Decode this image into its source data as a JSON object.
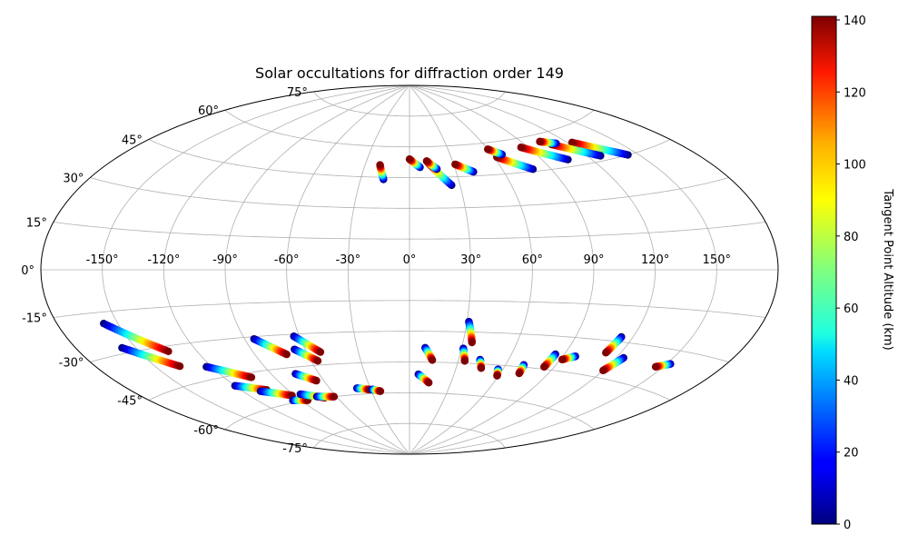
{
  "chart_data": {
    "type": "scatter",
    "projection": "aitoff",
    "title": "Solar occultations for diffraction order 149",
    "grid": true,
    "x_tick_labels": [
      "-150°",
      "-120°",
      "-90°",
      "-60°",
      "-30°",
      "0°",
      "30°",
      "60°",
      "90°",
      "120°",
      "150°"
    ],
    "x_tick_values": [
      -150,
      -120,
      -90,
      -60,
      -30,
      0,
      30,
      60,
      90,
      120,
      150
    ],
    "y_tick_labels": [
      "-75°",
      "-60°",
      "-45°",
      "-30°",
      "-15°",
      "0°",
      "15°",
      "30°",
      "45°",
      "60°",
      "75°"
    ],
    "y_tick_values": [
      -75,
      -60,
      -45,
      -30,
      -15,
      0,
      15,
      30,
      45,
      60,
      75
    ],
    "colorbar": {
      "label": "Tangent Point Altitude (km)",
      "colormap": "jet",
      "range": [
        0,
        141
      ],
      "tick_labels": [
        "0",
        "20",
        "40",
        "60",
        "80",
        "100",
        "120",
        "140"
      ],
      "tick_values": [
        0,
        20,
        40,
        60,
        80,
        100,
        120,
        140
      ]
    },
    "series_note": "Each track runs from start_lon/start_lat (altitude 0 km) to end_lon/end_lat (altitude 140 km).",
    "tracks": [
      {
        "start_lon": 144,
        "start_lat": 45,
        "end_lon": 123,
        "end_lat": 54
      },
      {
        "start_lon": 128,
        "start_lat": 47,
        "end_lon": 108,
        "end_lat": 55
      },
      {
        "start_lon": 106,
        "start_lat": 48,
        "end_lon": 85,
        "end_lat": 56
      },
      {
        "start_lon": 112,
        "start_lat": 55,
        "end_lon": 103,
        "end_lat": 57
      },
      {
        "start_lon": 79,
        "start_lat": 46,
        "end_lon": 62,
        "end_lat": 53
      },
      {
        "start_lon": 67,
        "start_lat": 54,
        "end_lon": 60,
        "end_lat": 57
      },
      {
        "start_lon": 41,
        "start_lat": 47,
        "end_lon": 31,
        "end_lat": 51
      },
      {
        "start_lon": 25,
        "start_lat": 41,
        "end_lon": 13,
        "end_lat": 52
      },
      {
        "start_lon": 18,
        "start_lat": 49,
        "end_lon": 12,
        "end_lat": 53
      },
      {
        "start_lon": 7,
        "start_lat": 50,
        "end_lon": 0,
        "end_lat": 54
      },
      {
        "start_lon": -16,
        "start_lat": 44,
        "end_lon": -20,
        "end_lat": 51
      },
      {
        "start_lon": 114,
        "start_lat": -28,
        "end_lon": 112,
        "end_lat": -35
      },
      {
        "start_lon": 124,
        "start_lat": -36,
        "end_lon": 120,
        "end_lat": -42
      },
      {
        "start_lon": 152,
        "start_lat": -35,
        "end_lon": 146,
        "end_lat": -37
      },
      {
        "start_lon": 97,
        "start_lat": -38,
        "end_lon": 91,
        "end_lat": -40
      },
      {
        "start_lon": -157,
        "start_lat": -19,
        "end_lon": -135,
        "end_lat": -32
      },
      {
        "start_lon": -157,
        "start_lat": -28,
        "end_lon": -137,
        "end_lat": -38
      },
      {
        "start_lon": -123,
        "start_lat": -40,
        "end_lon": -104,
        "end_lat": -47
      },
      {
        "start_lon": -120,
        "start_lat": -49,
        "end_lon": -104,
        "end_lat": -53
      },
      {
        "start_lon": -109,
        "start_lat": -53,
        "end_lon": -92,
        "end_lat": -57
      },
      {
        "start_lon": -96,
        "start_lat": -59,
        "end_lon": -85,
        "end_lat": -60
      },
      {
        "start_lon": -85,
        "start_lat": -31,
        "end_lon": -72,
        "end_lat": -39
      },
      {
        "start_lon": -63,
        "start_lat": -31,
        "end_lon": -52,
        "end_lat": -39
      },
      {
        "start_lon": -66,
        "start_lat": -37,
        "end_lon": -56,
        "end_lat": -43
      },
      {
        "start_lon": -75,
        "start_lat": -48,
        "end_lon": -65,
        "end_lat": -52
      },
      {
        "start_lon": -85,
        "start_lat": -57,
        "end_lon": -70,
        "end_lat": -60
      },
      {
        "start_lon": -75,
        "start_lat": -59,
        "end_lon": -62,
        "end_lat": -60
      },
      {
        "start_lon": -40,
        "start_lat": -57,
        "end_lon": -31,
        "end_lat": -58
      },
      {
        "start_lon": -29,
        "start_lat": -58,
        "end_lon": -23,
        "end_lat": -59
      },
      {
        "start_lon": 31,
        "start_lat": -25,
        "end_lon": 35,
        "end_lat": -35
      },
      {
        "start_lon": 31,
        "start_lat": -38,
        "end_lon": 34,
        "end_lat": -44
      },
      {
        "start_lon": 9,
        "start_lat": -38,
        "end_lon": 14,
        "end_lat": -44
      },
      {
        "start_lon": 6,
        "start_lat": -51,
        "end_lon": 14,
        "end_lat": -55
      },
      {
        "start_lon": 43,
        "start_lat": -43,
        "end_lon": 46,
        "end_lat": -47
      },
      {
        "start_lon": 57,
        "start_lat": -47,
        "end_lon": 59,
        "end_lat": -50
      },
      {
        "start_lon": 71,
        "start_lat": -44,
        "end_lon": 72,
        "end_lat": -48
      },
      {
        "start_lon": 85,
        "start_lat": -38,
        "end_lon": 84,
        "end_lat": -44
      }
    ]
  }
}
